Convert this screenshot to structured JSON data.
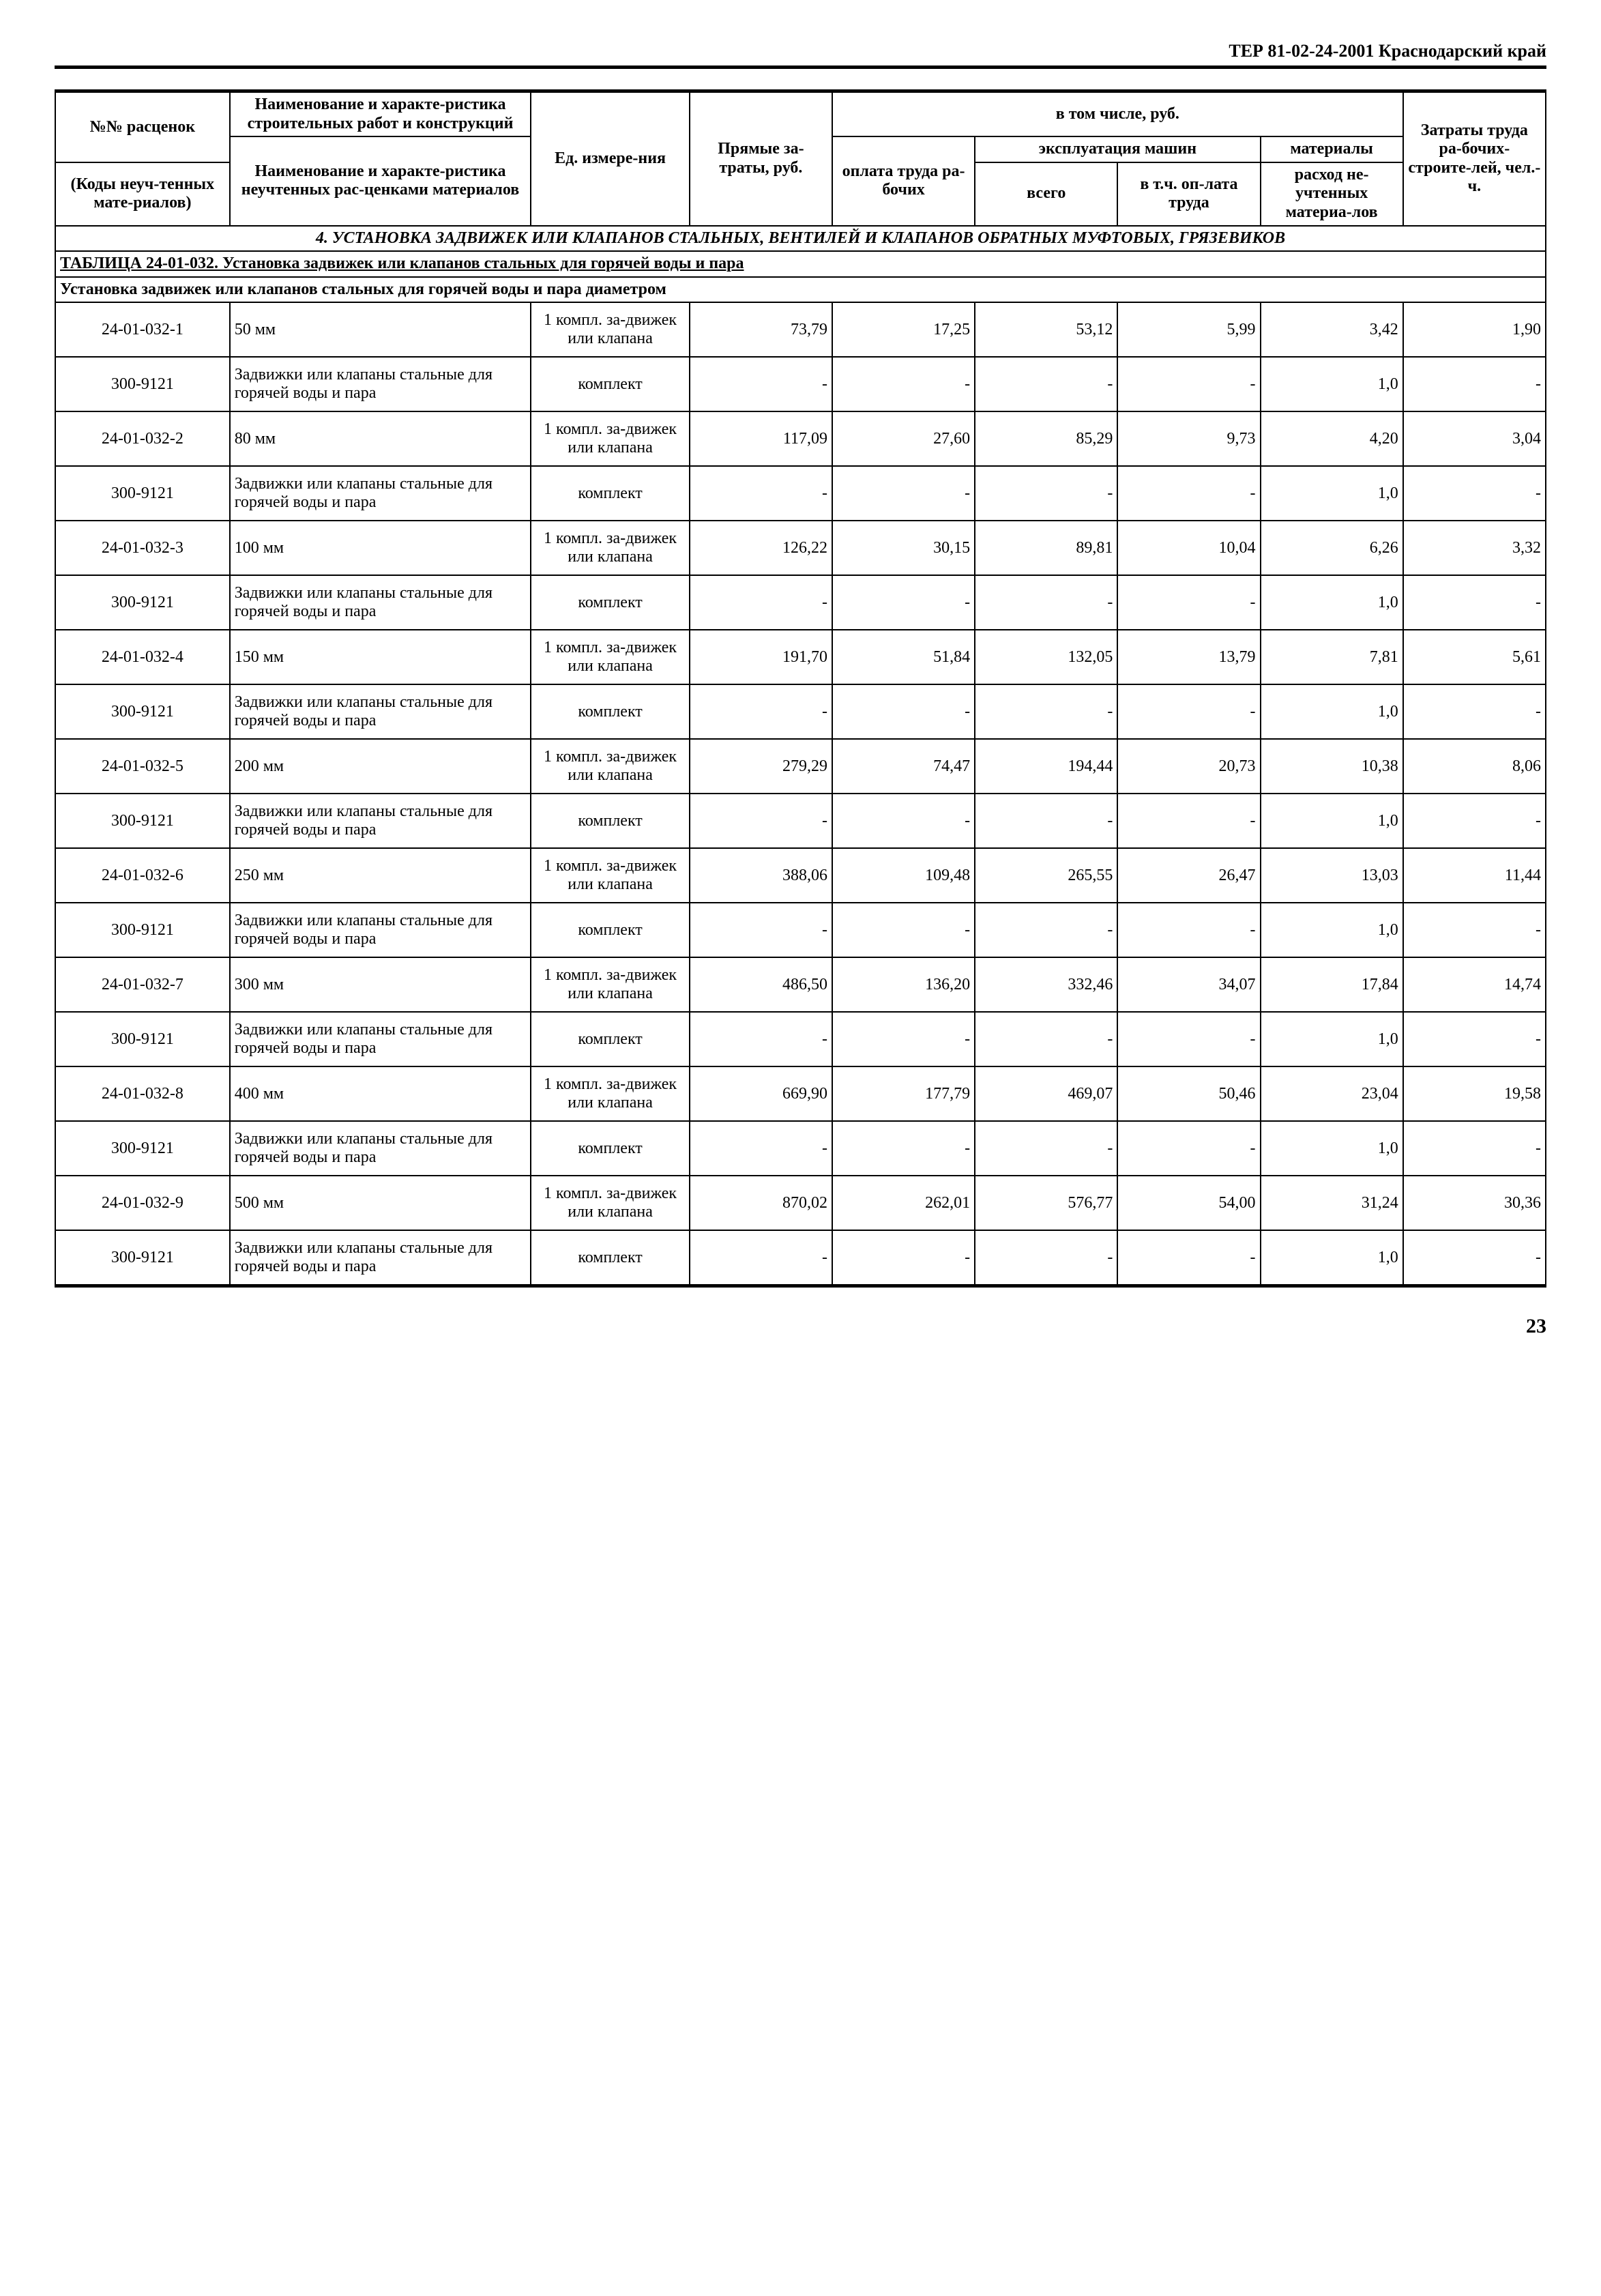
{
  "doc_header": "ТЕР 81-02-24-2001 Краснодарский край",
  "page_number": "23",
  "header": {
    "h_code_top": "№№ расценок",
    "h_code_bot": "(Коды неуч-тенных мате-риалов)",
    "h_name_top": "Наименование и характе-ристика строительных работ и конструкций",
    "h_name_bot": "Наименование и характе-ристика неучтенных рас-ценками материалов",
    "h_unit": "Ед. измере-ния",
    "h_direct": "Прямые за-траты, руб.",
    "h_incl": "в том числе, руб.",
    "h_labor_pay": "оплата труда ра-бочих",
    "h_mach": "эксплуатация машин",
    "h_mach_total": "всего",
    "h_mach_labor": "в т.ч. оп-лата труда",
    "h_materials": "материалы",
    "h_mat_unacc": "расход не-учтенных материа-лов",
    "h_labor_cost": "Затраты труда ра-бочих-строите-лей, чел.-ч."
  },
  "section_title": "4. УСТАНОВКА ЗАДВИЖЕК ИЛИ КЛАПАНОВ СТАЛЬНЫХ, ВЕНТИЛЕЙ И КЛАПАНОВ ОБРАТНЫХ МУФТОВЫХ, ГРЯЗЕВИКОВ",
  "table_title": "ТАБЛИЦА 24-01-032. Установка задвижек или клапанов стальных для горячей воды и пара",
  "table_subtitle": "Установка задвижек или клапанов стальных для горячей воды и пара диаметром",
  "unit_main": "1 компл. за-движек или клапана",
  "unit_set": "комплект",
  "mat_name": "Задвижки или клапаны стальные для горячей воды и пара",
  "mat_code": "300-9121",
  "dash": "-",
  "rows": [
    {
      "code": "24-01-032-1",
      "name": "50 мм",
      "direct": "73,79",
      "labor": "17,25",
      "mach_t": "53,12",
      "mach_l": "5,99",
      "mat": "3,42",
      "hrs": "1,90",
      "mat_qty": "1,0"
    },
    {
      "code": "24-01-032-2",
      "name": "80 мм",
      "direct": "117,09",
      "labor": "27,60",
      "mach_t": "85,29",
      "mach_l": "9,73",
      "mat": "4,20",
      "hrs": "3,04",
      "mat_qty": "1,0"
    },
    {
      "code": "24-01-032-3",
      "name": "100 мм",
      "direct": "126,22",
      "labor": "30,15",
      "mach_t": "89,81",
      "mach_l": "10,04",
      "mat": "6,26",
      "hrs": "3,32",
      "mat_qty": "1,0"
    },
    {
      "code": "24-01-032-4",
      "name": "150 мм",
      "direct": "191,70",
      "labor": "51,84",
      "mach_t": "132,05",
      "mach_l": "13,79",
      "mat": "7,81",
      "hrs": "5,61",
      "mat_qty": "1,0"
    },
    {
      "code": "24-01-032-5",
      "name": "200 мм",
      "direct": "279,29",
      "labor": "74,47",
      "mach_t": "194,44",
      "mach_l": "20,73",
      "mat": "10,38",
      "hrs": "8,06",
      "mat_qty": "1,0"
    },
    {
      "code": "24-01-032-6",
      "name": "250 мм",
      "direct": "388,06",
      "labor": "109,48",
      "mach_t": "265,55",
      "mach_l": "26,47",
      "mat": "13,03",
      "hrs": "11,44",
      "mat_qty": "1,0"
    },
    {
      "code": "24-01-032-7",
      "name": "300 мм",
      "direct": "486,50",
      "labor": "136,20",
      "mach_t": "332,46",
      "mach_l": "34,07",
      "mat": "17,84",
      "hrs": "14,74",
      "mat_qty": "1,0"
    },
    {
      "code": "24-01-032-8",
      "name": "400 мм",
      "direct": "669,90",
      "labor": "177,79",
      "mach_t": "469,07",
      "mach_l": "50,46",
      "mat": "23,04",
      "hrs": "19,58",
      "mat_qty": "1,0"
    },
    {
      "code": "24-01-032-9",
      "name": "500 мм",
      "direct": "870,02",
      "labor": "262,01",
      "mach_t": "576,77",
      "mach_l": "54,00",
      "mat": "31,24",
      "hrs": "30,36",
      "mat_qty": "1,0"
    }
  ]
}
